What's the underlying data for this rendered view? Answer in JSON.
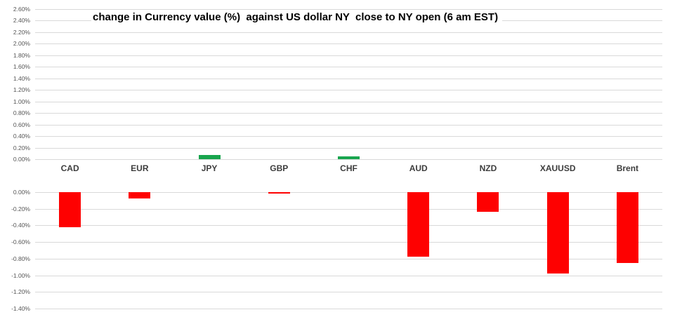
{
  "chart_data": {
    "type": "bar",
    "title": "change in Currency value (%)  against US dollar NY  close to NY open (6 am EST)",
    "categories": [
      "CAD",
      "EUR",
      "JPY",
      "GBP",
      "CHF",
      "AUD",
      "NZD",
      "XAUUSD",
      "Brent"
    ],
    "values": [
      -0.42,
      -0.08,
      0.07,
      -0.02,
      0.05,
      -0.78,
      -0.24,
      -0.98,
      -0.85
    ],
    "value_unit": "%",
    "grid": true,
    "legend_position": "none",
    "colors": {
      "positive_bar": "#18a54e",
      "negative_bar": "#fe0101",
      "gridline": "#d9d9d9",
      "tick_label": "#555555",
      "category_label": "#3d3d3d",
      "title": "#000000",
      "background": "#ffffff"
    },
    "upper_axis": {
      "min": 0.0,
      "max": 2.6,
      "step": 0.2,
      "tick_labels": [
        "2.60%",
        "2.40%",
        "2.20%",
        "2.00%",
        "1.80%",
        "1.60%",
        "1.40%",
        "1.20%",
        "1.00%",
        "0.80%",
        "0.60%",
        "0.40%",
        "0.20%",
        "0.00%"
      ]
    },
    "lower_axis": {
      "min": -1.4,
      "max": 0.0,
      "step": 0.2,
      "tick_labels": [
        "0.00%",
        "-0.20%",
        "-0.40%",
        "-0.60%",
        "-0.80%",
        "-1.00%",
        "-1.20%",
        "-1.40%"
      ]
    }
  }
}
